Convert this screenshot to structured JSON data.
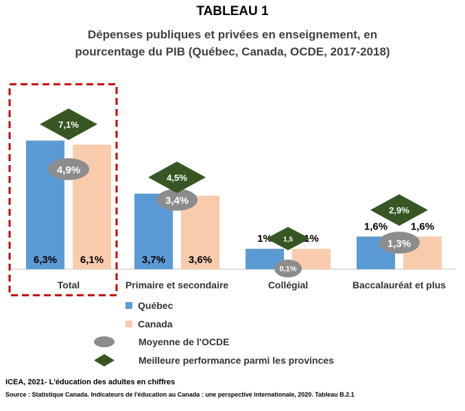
{
  "header": {
    "title": "TABLEAU 1",
    "subtitle_line1": "Dépenses publiques et privées en enseignement, en",
    "subtitle_line2": "pourcentage du PIB (Québec, Canada, OCDE, 2017-2018)"
  },
  "chart_data": {
    "type": "bar",
    "categories": [
      "Total",
      "Primaire et secondaire",
      "Collégial",
      "Baccalauréat et plus"
    ],
    "series": [
      {
        "name": "Québec",
        "values": [
          6.3,
          3.7,
          1.0,
          1.6
        ],
        "labels": [
          "6,3%",
          "3,7%",
          "1%",
          "1,6%"
        ],
        "color": "#5b9bd5"
      },
      {
        "name": "Canada",
        "values": [
          6.1,
          3.6,
          1.0,
          1.6
        ],
        "labels": [
          "6,1%",
          "3,6%",
          "1%",
          "1,6%"
        ],
        "color": "#f8cbad"
      }
    ],
    "oecd_average": {
      "name": "Moyenne de l'OCDE",
      "values": [
        4.9,
        3.4,
        0.1,
        1.3
      ],
      "labels": [
        "4,9%",
        "3,4%",
        "0,1%",
        "1,3%"
      ],
      "color": "#8c8c8c"
    },
    "best_province": {
      "name": "Meilleure performance parmi les provinces",
      "values": [
        7.1,
        4.5,
        1.5,
        2.9
      ],
      "labels": [
        "7,1%",
        "4,5%",
        "1,5",
        "2,9%"
      ],
      "color": "#375623"
    },
    "highlighted_category": "Total",
    "highlight_color": "#c00000",
    "ylim": [
      0,
      8
    ],
    "grid": false,
    "legend_position": "bottom-left"
  },
  "footer": {
    "source_line1": "ICEA, 2021- L'éducation des adultes en chiffres",
    "source_line2": "Source : Statistique Canada.  Indicateurs de l'éducation au Canada : une perspective internationale, 2020. Tableau B.2.1"
  }
}
